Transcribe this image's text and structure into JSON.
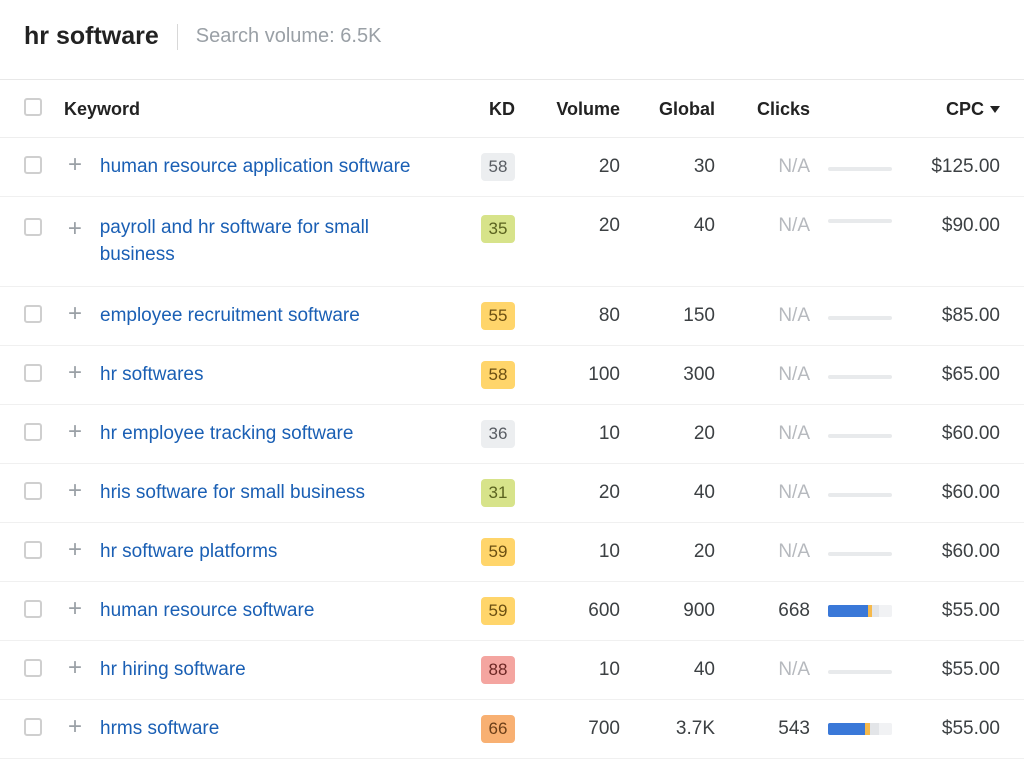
{
  "header": {
    "title": "hr software",
    "sub_label": "Search volume: ",
    "sub_value": "6.5K"
  },
  "columns": {
    "keyword": "Keyword",
    "kd": "KD",
    "volume": "Volume",
    "global": "Global",
    "clicks": "Clicks",
    "cpc": "CPC"
  },
  "kd_palette": {
    "grey": {
      "bg": "#eceef0",
      "fg": "#585c62"
    },
    "green": {
      "bg": "#d7e38a",
      "fg": "#5a621f"
    },
    "amber": {
      "bg": "#ffd56b",
      "fg": "#6b4f12"
    },
    "orange": {
      "bg": "#f8b072",
      "fg": "#6b3e18"
    },
    "red": {
      "bg": "#f4a5a0",
      "fg": "#6b2623"
    }
  },
  "rows": [
    {
      "keyword": "human resource application software",
      "kd": 58,
      "kd_tone": "grey",
      "volume": "20",
      "global": "30",
      "clicks": "N/A",
      "spark": null,
      "cpc": "$125.00"
    },
    {
      "keyword": "payroll and hr software for small business",
      "kd": 35,
      "kd_tone": "green",
      "volume": "20",
      "global": "40",
      "clicks": "N/A",
      "spark": null,
      "cpc": "$90.00",
      "wrap": true
    },
    {
      "keyword": "employee recruitment software",
      "kd": 55,
      "kd_tone": "amber",
      "volume": "80",
      "global": "150",
      "clicks": "N/A",
      "spark": null,
      "cpc": "$85.00"
    },
    {
      "keyword": "hr softwares",
      "kd": 58,
      "kd_tone": "amber",
      "volume": "100",
      "global": "300",
      "clicks": "N/A",
      "spark": null,
      "cpc": "$65.00"
    },
    {
      "keyword": "hr employee tracking software",
      "kd": 36,
      "kd_tone": "grey",
      "volume": "10",
      "global": "20",
      "clicks": "N/A",
      "spark": null,
      "cpc": "$60.00"
    },
    {
      "keyword": "hris software for small business",
      "kd": 31,
      "kd_tone": "green",
      "volume": "20",
      "global": "40",
      "clicks": "N/A",
      "spark": null,
      "cpc": "$60.00"
    },
    {
      "keyword": "hr software platforms",
      "kd": 59,
      "kd_tone": "amber",
      "volume": "10",
      "global": "20",
      "clicks": "N/A",
      "spark": null,
      "cpc": "$60.00"
    },
    {
      "keyword": "human resource software",
      "kd": 59,
      "kd_tone": "amber",
      "volume": "600",
      "global": "900",
      "clicks": "668",
      "spark": {
        "blue": 0.62,
        "orange": 0.06,
        "grey": 0.12
      },
      "cpc": "$55.00"
    },
    {
      "keyword": "hr hiring software",
      "kd": 88,
      "kd_tone": "red",
      "volume": "10",
      "global": "40",
      "clicks": "N/A",
      "spark": null,
      "cpc": "$55.00"
    },
    {
      "keyword": "hrms software",
      "kd": 66,
      "kd_tone": "orange",
      "volume": "700",
      "global": "3.7K",
      "clicks": "543",
      "spark": {
        "blue": 0.58,
        "orange": 0.08,
        "grey": 0.14
      },
      "cpc": "$55.00"
    }
  ]
}
